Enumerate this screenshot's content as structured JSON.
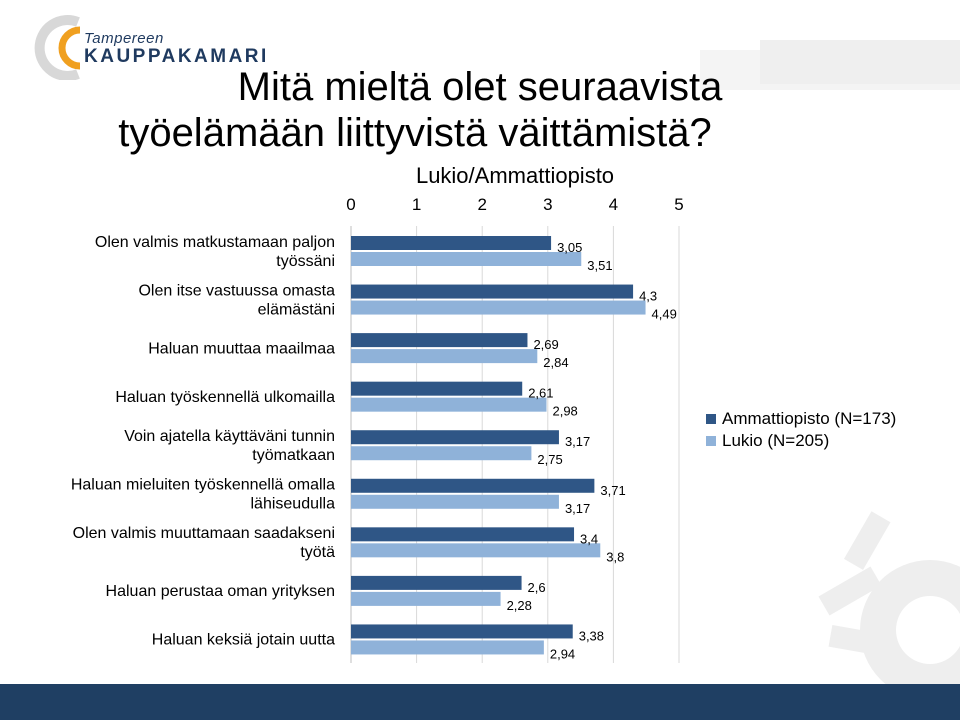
{
  "logo": {
    "line1": "Tampereen",
    "line2": "KAUPPAKAMARI"
  },
  "title_line1": "Mitä mieltä olet seuraavista",
  "title_line2": "työelämään liittyvistä väittämistä?",
  "colors": {
    "ammattiopisto": "#2f5686",
    "lukio": "#8fb2d9",
    "footer": "#1f3f63",
    "logo_orange": "#f0a020"
  },
  "chart_data": {
    "type": "bar",
    "orientation": "horizontal",
    "title": "Lukio/Ammattiopisto",
    "xlim": [
      0,
      5
    ],
    "xticks": [
      "0",
      "1",
      "2",
      "3",
      "4",
      "5"
    ],
    "grid": true,
    "legend_position": "right",
    "categories": [
      [
        "Olen valmis matkustamaan paljon",
        "työssäni"
      ],
      [
        "Olen itse vastuussa omasta",
        "elämästäni"
      ],
      [
        "Haluan muuttaa maailmaa"
      ],
      [
        "Haluan työskennellä ulkomailla"
      ],
      [
        "Voin ajatella käyttäväni tunnin",
        "työmatkaan"
      ],
      [
        "Haluan mieluiten työskennellä omalla",
        "lähiseudulla"
      ],
      [
        "Olen valmis muuttamaan saadakseni",
        "työtä"
      ],
      [
        "Haluan perustaa oman yrityksen"
      ],
      [
        "Haluan keksiä jotain uutta"
      ]
    ],
    "series": [
      {
        "name": "Ammattiopisto (N=173)",
        "values": [
          3.05,
          4.3,
          2.69,
          2.61,
          3.17,
          3.71,
          3.4,
          2.6,
          3.38
        ],
        "labels": [
          "3,05",
          "4,3",
          "2,69",
          "2,61",
          "3,17",
          "3,71",
          "3,4",
          "2,6",
          "3,38"
        ]
      },
      {
        "name": "Lukio (N=205)",
        "values": [
          3.51,
          4.49,
          2.84,
          2.98,
          2.75,
          3.17,
          3.8,
          2.28,
          2.94
        ],
        "labels": [
          "3,51",
          "4,49",
          "2,84",
          "2,98",
          "2,75",
          "3,17",
          "3,8",
          "2,28",
          "2,94"
        ]
      }
    ]
  }
}
